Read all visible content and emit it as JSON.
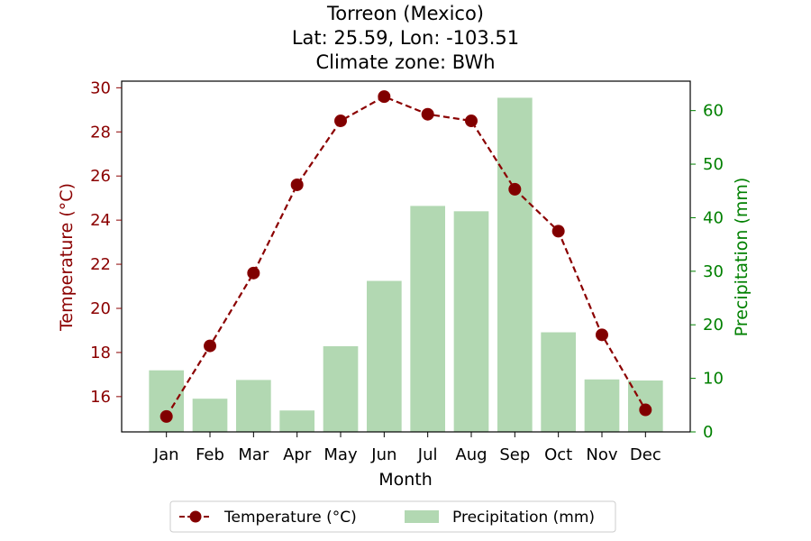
{
  "chart_data": {
    "type": "bar+line",
    "title_lines": [
      "Torreon (Mexico)",
      "Lat: 25.59, Lon: -103.51",
      "Climate zone: BWh"
    ],
    "xlabel": "Month",
    "ylabel_left": "Temperature (°C)",
    "ylabel_right": "Precipitation (mm)",
    "categories": [
      "Jan",
      "Feb",
      "Mar",
      "Apr",
      "May",
      "Jun",
      "Jul",
      "Aug",
      "Sep",
      "Oct",
      "Nov",
      "Dec"
    ],
    "series": [
      {
        "name": "Temperature (°C)",
        "kind": "line",
        "axis": "left",
        "values": [
          15.1,
          18.3,
          21.6,
          25.6,
          28.5,
          29.6,
          28.8,
          28.5,
          25.4,
          23.5,
          18.8,
          15.4
        ]
      },
      {
        "name": "Precipitation (mm)",
        "kind": "bar",
        "axis": "right",
        "values": [
          11.5,
          6.2,
          9.7,
          4.0,
          16.0,
          28.2,
          42.2,
          41.2,
          62.4,
          18.6,
          9.8,
          9.6
        ]
      }
    ],
    "ylim_left": [
      14.4,
      30.3
    ],
    "ylim_right": [
      0,
      65.5
    ],
    "yticks_left": [
      16,
      18,
      20,
      22,
      24,
      26,
      28,
      30
    ],
    "yticks_right": [
      0,
      10,
      20,
      30,
      40,
      50,
      60
    ],
    "grid": false,
    "legend_placement": "bottom-center",
    "colors": {
      "temperature_line": "#8b0000",
      "temperature_marker_face": "#800000",
      "precip_bar": "#b2d8b2",
      "left_axis": "#8b0000",
      "right_axis": "#008000"
    }
  }
}
